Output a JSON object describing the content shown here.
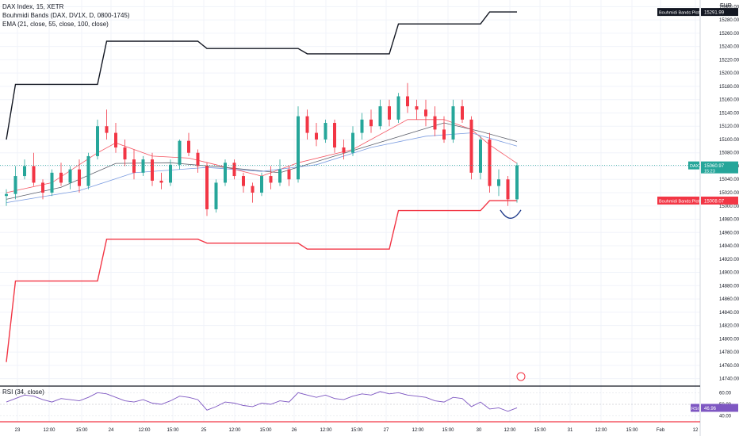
{
  "legend": {
    "symbol": "DAX Index, 15, XETR",
    "indicator_1": "Bouhmidi Bands (DAX, DV1X, D, 0800-1745)",
    "indicator_2": "EMA (21, close, 55, close, 100, close)"
  },
  "currency": "EUR",
  "rsi_legend": "RSI (34, close)",
  "chart_data": {
    "type": "candlestick",
    "y_ticks": [
      14740,
      14760,
      14780,
      14800,
      14820,
      14840,
      14860,
      14880,
      14900,
      14920,
      14940,
      14960,
      14980,
      15000,
      15020,
      15040,
      15060,
      15080,
      15100,
      15120,
      15140,
      15160,
      15180,
      15200,
      15220,
      15240,
      15260,
      15280,
      15300
    ],
    "x_ticks": [
      "23",
      "12:00",
      "15:00",
      "24",
      "12:00",
      "15:00",
      "25",
      "12:00",
      "15:00",
      "26",
      "12:00",
      "15:00",
      "27",
      "12:00",
      "15:00",
      "30",
      "12:00",
      "15:00",
      "31",
      "12:00",
      "15:00",
      "Feb",
      "12"
    ],
    "ylim": [
      14730,
      15310
    ],
    "price_labels": [
      {
        "name": "Bouhmidi Bands:Plot",
        "value": "15291.99",
        "color": "#131722"
      },
      {
        "name": "DAX",
        "value": "15060.97",
        "sub": "15:23",
        "color": "#26a69a"
      },
      {
        "name": "Bouhmidi Bands:Plot",
        "value": "15008.07",
        "color": "#f23645"
      }
    ],
    "upper_band": [
      [
        0,
        15100
      ],
      [
        1,
        15183
      ],
      [
        10,
        15183
      ],
      [
        11,
        15248
      ],
      [
        21,
        15248
      ],
      [
        22,
        15237
      ],
      [
        32,
        15237
      ],
      [
        33,
        15229
      ],
      [
        42,
        15229
      ],
      [
        43,
        15274
      ],
      [
        52,
        15274
      ],
      [
        53,
        15292
      ],
      [
        56,
        15292
      ]
    ],
    "lower_band": [
      [
        0,
        14765
      ],
      [
        1,
        14887
      ],
      [
        10,
        14887
      ],
      [
        11,
        14950
      ],
      [
        21,
        14950
      ],
      [
        22,
        14944
      ],
      [
        32,
        14944
      ],
      [
        33,
        14935
      ],
      [
        42,
        14935
      ],
      [
        43,
        14993
      ],
      [
        52,
        14993
      ],
      [
        53,
        15008
      ],
      [
        56,
        15008
      ]
    ],
    "candles": [
      [
        15015,
        15025,
        15000,
        15018
      ],
      [
        15018,
        15060,
        15010,
        15045
      ],
      [
        15045,
        15070,
        15040,
        15060
      ],
      [
        15060,
        15080,
        15030,
        15035
      ],
      [
        15035,
        15040,
        15010,
        15020
      ],
      [
        15020,
        15055,
        15015,
        15050
      ],
      [
        15050,
        15065,
        15030,
        15035
      ],
      [
        15035,
        15060,
        15025,
        15055
      ],
      [
        15055,
        15070,
        15020,
        15030
      ],
      [
        15030,
        15080,
        15025,
        15075
      ],
      [
        15075,
        15130,
        15070,
        15120
      ],
      [
        15120,
        15145,
        15100,
        15110
      ],
      [
        15110,
        15125,
        15080,
        15088
      ],
      [
        15088,
        15100,
        15060,
        15070
      ],
      [
        15070,
        15085,
        15040,
        15050
      ],
      [
        15050,
        15075,
        15045,
        15070
      ],
      [
        15070,
        15080,
        15030,
        15038
      ],
      [
        15038,
        15050,
        15025,
        15035
      ],
      [
        15035,
        15070,
        15030,
        15062
      ],
      [
        15062,
        15100,
        15055,
        15098
      ],
      [
        15098,
        15110,
        15075,
        15080
      ],
      [
        15080,
        15085,
        15050,
        15060
      ],
      [
        15060,
        15065,
        14985,
        14995
      ],
      [
        14995,
        15040,
        14990,
        15035
      ],
      [
        15035,
        15070,
        15030,
        15065
      ],
      [
        15065,
        15070,
        15040,
        15045
      ],
      [
        15045,
        15050,
        15020,
        15030
      ],
      [
        15030,
        15035,
        15005,
        15020
      ],
      [
        15020,
        15050,
        15015,
        15045
      ],
      [
        15045,
        15060,
        15025,
        15035
      ],
      [
        15035,
        15070,
        15030,
        15055
      ],
      [
        15055,
        15060,
        15030,
        15040
      ],
      [
        15040,
        15150,
        15035,
        15135
      ],
      [
        15135,
        15145,
        15100,
        15110
      ],
      [
        15110,
        15125,
        15090,
        15100
      ],
      [
        15100,
        15130,
        15095,
        15125
      ],
      [
        15125,
        15130,
        15080,
        15088
      ],
      [
        15088,
        15100,
        15070,
        15080
      ],
      [
        15080,
        15120,
        15075,
        15110
      ],
      [
        15110,
        15140,
        15100,
        15130
      ],
      [
        15130,
        15145,
        15110,
        15120
      ],
      [
        15120,
        15160,
        15115,
        15150
      ],
      [
        15150,
        15160,
        15120,
        15130
      ],
      [
        15130,
        15170,
        15125,
        15165
      ],
      [
        15165,
        15185,
        15140,
        15150
      ],
      [
        15150,
        15160,
        15130,
        15145
      ],
      [
        15145,
        15160,
        15120,
        15135
      ],
      [
        15135,
        15150,
        15105,
        15115
      ],
      [
        15115,
        15135,
        15095,
        15100
      ],
      [
        15100,
        15160,
        15095,
        15150
      ],
      [
        15150,
        15160,
        15125,
        15130
      ],
      [
        15130,
        15135,
        15040,
        15050
      ],
      [
        15050,
        15105,
        15040,
        15100
      ],
      [
        15100,
        15110,
        15020,
        15030
      ],
      [
        15030,
        15055,
        15015,
        15040
      ],
      [
        15040,
        15045,
        15000,
        15010
      ],
      [
        15010,
        15065,
        15005,
        15061
      ]
    ],
    "ema_fast": [
      [
        0,
        15020
      ],
      [
        5,
        15035
      ],
      [
        10,
        15080
      ],
      [
        12,
        15095
      ],
      [
        16,
        15075
      ],
      [
        20,
        15072
      ],
      [
        23,
        15062
      ],
      [
        28,
        15045
      ],
      [
        32,
        15065
      ],
      [
        38,
        15085
      ],
      [
        44,
        15130
      ],
      [
        48,
        15130
      ],
      [
        51,
        15115
      ],
      [
        53,
        15092
      ],
      [
        56,
        15064
      ]
    ],
    "ema_mid": [
      [
        0,
        15010
      ],
      [
        6,
        15028
      ],
      [
        12,
        15064
      ],
      [
        18,
        15065
      ],
      [
        24,
        15058
      ],
      [
        30,
        15050
      ],
      [
        36,
        15075
      ],
      [
        42,
        15100
      ],
      [
        48,
        15125
      ],
      [
        52,
        15112
      ],
      [
        56,
        15097
      ]
    ],
    "ema_slow": [
      [
        0,
        15005
      ],
      [
        8,
        15023
      ],
      [
        14,
        15050
      ],
      [
        22,
        15058
      ],
      [
        28,
        15052
      ],
      [
        34,
        15062
      ],
      [
        40,
        15088
      ],
      [
        46,
        15105
      ],
      [
        51,
        15110
      ],
      [
        56,
        15090
      ]
    ],
    "annotation_arc": {
      "center_bar": 55.3,
      "center_price": 14988
    },
    "rsi": {
      "ticks": [
        "60.00",
        "50.00",
        "40.00"
      ],
      "value": "46.96",
      "ylim": [
        35,
        65
      ],
      "values": [
        52,
        55,
        58,
        57,
        54,
        52,
        55,
        54,
        53,
        56,
        60,
        59,
        56,
        53,
        52,
        54,
        51,
        50,
        53,
        57,
        56,
        54,
        45,
        48,
        52,
        51,
        49,
        48,
        51,
        50,
        53,
        52,
        60,
        58,
        56,
        58,
        55,
        54,
        57,
        59,
        58,
        61,
        59,
        60,
        58,
        57,
        56,
        53,
        52,
        56,
        55,
        48,
        52,
        46,
        47,
        44,
        47
      ]
    }
  }
}
